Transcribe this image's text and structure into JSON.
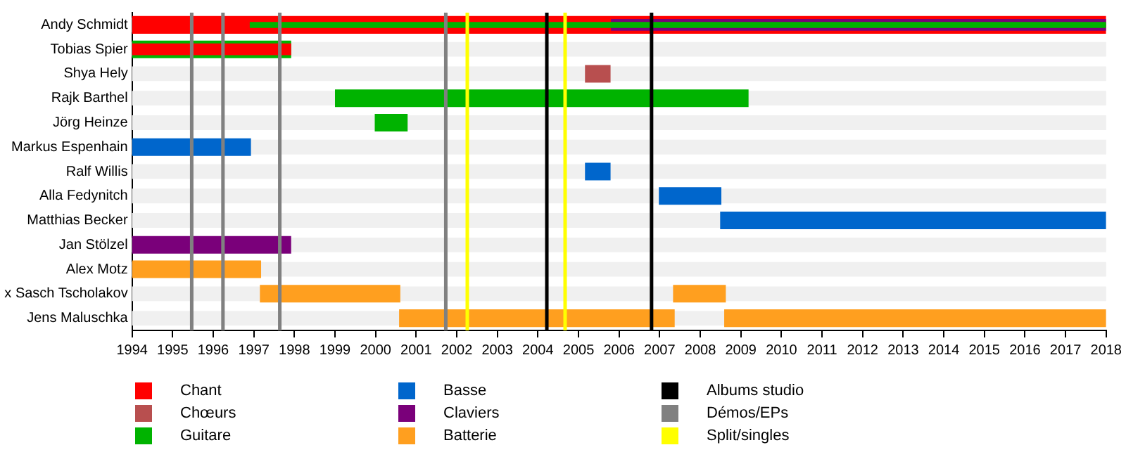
{
  "chart_data": {
    "type": "bar",
    "orientation": "horizontal",
    "grid": false,
    "legend": "bottom",
    "categories": [
      "Andy Schmidt",
      "Tobias Spier",
      "Shya Hely",
      "Rajk Barthel",
      "Jörg Heinze",
      "Markus Espenhain",
      "Ralf Willis",
      "Alla Fedynitch",
      "Matthias Becker",
      "Jan Stölzel",
      "Alex Motz",
      "x Sasch Tscholakov",
      "Jens Maluschka"
    ],
    "xlim": [
      1994,
      2018
    ],
    "xticks": [
      1994,
      1995,
      1996,
      1997,
      1998,
      1999,
      2000,
      2001,
      2002,
      2003,
      2004,
      2005,
      2006,
      2007,
      2008,
      2009,
      2010,
      2011,
      2012,
      2013,
      2014,
      2015,
      2016,
      2017,
      2018
    ],
    "series": [
      {
        "name": "Chant",
        "color": "#ff0000",
        "base": [
          1994,
          null,
          null,
          null,
          null,
          null,
          null,
          null,
          null,
          null,
          null,
          null,
          null
        ],
        "values": [
          24,
          null,
          null,
          null,
          null,
          null,
          null,
          null,
          null,
          null,
          null,
          null,
          null
        ]
      },
      {
        "name": "Chœurs",
        "color": "#b84f4f",
        "base": [
          null,
          null,
          2005.16,
          null,
          null,
          null,
          null,
          null,
          null,
          null,
          null,
          null,
          null
        ],
        "values": [
          null,
          null,
          0.63,
          null,
          null,
          null,
          null,
          null,
          null,
          null,
          null,
          null,
          null
        ]
      },
      {
        "name": "Guitare",
        "color": "#00b300",
        "base": [
          null,
          1994,
          null,
          1999.0,
          1999.98,
          null,
          null,
          null,
          null,
          null,
          null,
          null,
          null
        ],
        "values": [
          null,
          3.92,
          null,
          10.19,
          0.81,
          null,
          null,
          null,
          null,
          null,
          null,
          null,
          null
        ]
      },
      {
        "name": "Basse",
        "color": "#0066cc",
        "base": [
          null,
          null,
          null,
          null,
          null,
          1994,
          2005.16,
          2006.98,
          2008.49,
          null,
          null,
          null,
          null
        ],
        "values": [
          null,
          null,
          null,
          null,
          null,
          2.93,
          0.63,
          1.54,
          9.51,
          null,
          null,
          null,
          null
        ]
      },
      {
        "name": "Claviers",
        "color": "#7a007a",
        "base": [
          null,
          null,
          null,
          null,
          null,
          null,
          null,
          null,
          null,
          1994,
          null,
          null,
          null
        ],
        "values": [
          null,
          null,
          null,
          null,
          null,
          null,
          null,
          null,
          null,
          3.92,
          null,
          null,
          null
        ]
      },
      {
        "name": "Batterie",
        "color": "#ff9f1f",
        "base": [
          null,
          null,
          null,
          null,
          null,
          null,
          null,
          null,
          null,
          null,
          1994,
          1997.15,
          2000.58
        ],
        "values": [
          null,
          null,
          null,
          null,
          null,
          null,
          null,
          null,
          null,
          null,
          3.18,
          3.46,
          6.79
        ]
      },
      {
        "color": "#ff9f1f",
        "base": [
          null,
          null,
          null,
          null,
          null,
          null,
          null,
          null,
          null,
          null,
          null,
          2007.33,
          2008.59
        ],
        "values": [
          null,
          null,
          null,
          null,
          null,
          null,
          null,
          null,
          null,
          null,
          null,
          1.3,
          9.41
        ]
      },
      {
        "color": "#7a007a",
        "base": [
          2005.8,
          null,
          null,
          null,
          null,
          null,
          null,
          null,
          null,
          null,
          null,
          null,
          null
        ],
        "values": [
          12.2,
          null,
          null,
          null,
          null,
          null,
          null,
          null,
          null,
          null,
          null,
          null,
          null
        ]
      },
      {
        "color": "#00b300",
        "base": [
          1996.9,
          null,
          null,
          null,
          null,
          null,
          null,
          null,
          null,
          null,
          null,
          null,
          null
        ],
        "values": [
          21.1,
          null,
          null,
          null,
          null,
          null,
          null,
          null,
          null,
          null,
          null,
          null,
          null
        ]
      },
      {
        "color": "#ff0000",
        "base": [
          null,
          1994,
          null,
          null,
          null,
          null,
          null,
          null,
          null,
          null,
          null,
          null,
          null
        ],
        "values": [
          null,
          3.92,
          null,
          null,
          null,
          null,
          null,
          null,
          null,
          null,
          null,
          null,
          null
        ]
      }
    ],
    "ref_lines": [
      {
        "axis": "x",
        "value": 2004.22,
        "label": "Albums studio",
        "color": "#000000"
      },
      {
        "axis": "x",
        "value": 2006.8,
        "color": "#000000"
      },
      {
        "axis": "x",
        "value": 1995.47,
        "label": "Démos/EPs",
        "color": "#808080"
      },
      {
        "axis": "x",
        "value": 1996.24,
        "color": "#808080"
      },
      {
        "axis": "x",
        "value": 1997.64,
        "color": "#808080"
      },
      {
        "axis": "x",
        "value": 2001.73,
        "color": "#808080"
      },
      {
        "axis": "x",
        "value": 2002.26,
        "label": "Split/singles",
        "color": "#ffff00"
      },
      {
        "axis": "x",
        "value": 2004.67,
        "color": "#ffff00"
      }
    ]
  }
}
